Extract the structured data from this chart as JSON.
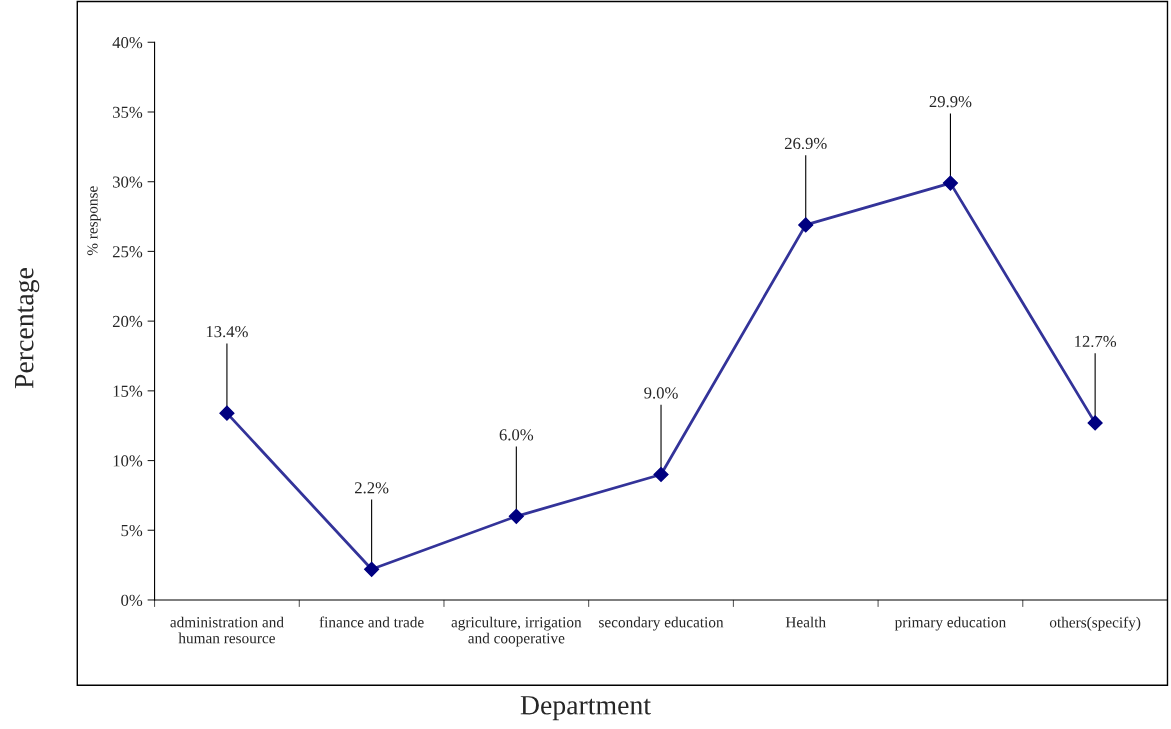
{
  "chart_data": {
    "type": "line",
    "xlabel": "Department",
    "ylabel": "Percentage",
    "annotations": [
      "% response",
      {
        "text": "13.4%",
        "x": "administration and\nhuman resource",
        "y": 18.4
      },
      {
        "text": "2.2%",
        "x": "finance and trade",
        "y": 7.2
      },
      {
        "text": "6.0%",
        "x": "agriculture, irrigation\nand cooperative",
        "y": 11.0
      },
      {
        "text": "9.0%",
        "x": "secondary education",
        "y": 14.0
      },
      {
        "text": "26.9%",
        "x": "Health",
        "y": 31.9
      },
      {
        "text": "29.9%",
        "x": "primary education",
        "y": 34.9
      },
      {
        "text": "12.7%",
        "x": "others(specify)",
        "y": 17.7
      }
    ],
    "categories": [
      "administration and\nhuman resource",
      "finance and trade",
      "agriculture, irrigation\nand cooperative",
      "secondary education",
      "Health",
      "primary education",
      "others(specify)"
    ],
    "series": [
      {
        "color": "#333399",
        "values": [
          13.4,
          2.2,
          6.0,
          9.0,
          26.9,
          29.9,
          12.7
        ],
        "errors": [
          [
            13.4,
            18.4
          ],
          [
            2.2,
            7.2
          ],
          [
            6.0,
            11.0
          ],
          [
            9.0,
            14.0
          ],
          [
            26.9,
            31.9
          ],
          [
            29.9,
            34.9
          ],
          [
            12.7,
            17.7
          ]
        ]
      }
    ],
    "marker": "diamond",
    "line_style": "solid",
    "grid": false,
    "legend": false,
    "ylim": [
      0,
      40
    ],
    "yticks": [
      {
        "value": 0,
        "label": "0%"
      },
      {
        "value": 5,
        "label": "5%"
      },
      {
        "value": 10,
        "label": "10%"
      },
      {
        "value": 15,
        "label": "15%"
      },
      {
        "value": 20,
        "label": "20%"
      },
      {
        "value": 25,
        "label": "25%"
      },
      {
        "value": 30,
        "label": "30%"
      },
      {
        "value": 35,
        "label": "35%"
      },
      {
        "value": 40,
        "label": "40%"
      }
    ]
  }
}
